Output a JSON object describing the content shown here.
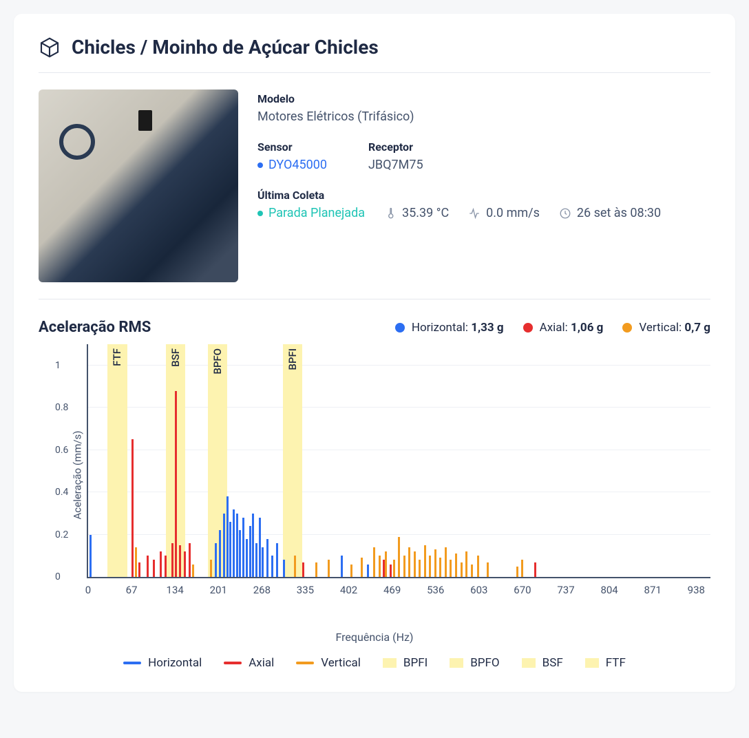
{
  "header": {
    "title": "Chicles / Moinho de Açúcar Chicles"
  },
  "info": {
    "model_label": "Modelo",
    "model_value": "Motores Elétricos (Trifásico)",
    "sensor_label": "Sensor",
    "sensor_value": "DYO45000",
    "sensor_dot_color": "#2c6ef2",
    "receptor_label": "Receptor",
    "receptor_value": "JBQ7M75",
    "last_label": "Última Coleta",
    "status_text": "Parada Planejada",
    "status_dot_color": "#1fc4b5",
    "temp": "35.39 °C",
    "velocity": "0.0 mm/s",
    "timestamp": "26 set às 08:30"
  },
  "chart": {
    "title": "Aceleração RMS",
    "y_axis_label": "Aceleração (mm/s)",
    "x_axis_label": "Frequência (Hz)",
    "colors": {
      "horizontal": "#2c6ef2",
      "axial": "#e62e2e",
      "vertical": "#f29b1f",
      "band": "#fdf3b0",
      "grid": "#eef0f4"
    },
    "legend_top": [
      {
        "label": "Horizontal:",
        "value": "1,33 g",
        "color": "#2c6ef2"
      },
      {
        "label": "Axial:",
        "value": "1,06 g",
        "color": "#e62e2e"
      },
      {
        "label": "Vertical:",
        "value": "0,7 g",
        "color": "#f29b1f"
      }
    ],
    "y_ticks": [
      0,
      0.2,
      0.4,
      0.6,
      0.8,
      1
    ],
    "y_max": 1.1,
    "x_ticks": [
      0,
      67,
      134,
      201,
      268,
      335,
      402,
      469,
      536,
      603,
      670,
      737,
      804,
      871,
      938
    ],
    "x_max": 960,
    "bands": [
      {
        "label": "FTF",
        "x": 30,
        "width": 30
      },
      {
        "label": "BSF",
        "x": 120,
        "width": 30
      },
      {
        "label": "BPFO",
        "x": 185,
        "width": 30
      },
      {
        "label": "BPFI",
        "x": 300,
        "width": 30
      }
    ],
    "series": {
      "horizontal": [
        {
          "x": 2,
          "y": 0.2
        },
        {
          "x": 195,
          "y": 0.16
        },
        {
          "x": 202,
          "y": 0.22
        },
        {
          "x": 208,
          "y": 0.3
        },
        {
          "x": 213,
          "y": 0.38
        },
        {
          "x": 218,
          "y": 0.26
        },
        {
          "x": 223,
          "y": 0.32
        },
        {
          "x": 228,
          "y": 0.3
        },
        {
          "x": 233,
          "y": 0.22
        },
        {
          "x": 238,
          "y": 0.28
        },
        {
          "x": 243,
          "y": 0.18
        },
        {
          "x": 248,
          "y": 0.24
        },
        {
          "x": 253,
          "y": 0.3
        },
        {
          "x": 258,
          "y": 0.16
        },
        {
          "x": 263,
          "y": 0.28
        },
        {
          "x": 268,
          "y": 0.14
        },
        {
          "x": 275,
          "y": 0.18
        },
        {
          "x": 282,
          "y": 0.1
        },
        {
          "x": 290,
          "y": 0.16
        },
        {
          "x": 300,
          "y": 0.08
        },
        {
          "x": 390,
          "y": 0.1
        },
        {
          "x": 430,
          "y": 0.06
        }
      ],
      "axial": [
        {
          "x": 67,
          "y": 0.65
        },
        {
          "x": 78,
          "y": 0.07
        },
        {
          "x": 90,
          "y": 0.1
        },
        {
          "x": 100,
          "y": 0.08
        },
        {
          "x": 110,
          "y": 0.12
        },
        {
          "x": 118,
          "y": 0.1
        },
        {
          "x": 128,
          "y": 0.16
        },
        {
          "x": 134,
          "y": 0.88
        },
        {
          "x": 140,
          "y": 0.15
        },
        {
          "x": 148,
          "y": 0.12
        },
        {
          "x": 155,
          "y": 0.16
        },
        {
          "x": 330,
          "y": 0.07
        },
        {
          "x": 455,
          "y": 0.08
        },
        {
          "x": 465,
          "y": 0.06
        },
        {
          "x": 688,
          "y": 0.07
        }
      ],
      "vertical": [
        {
          "x": 72,
          "y": 0.14
        },
        {
          "x": 134,
          "y": 0.52
        },
        {
          "x": 160,
          "y": 0.06
        },
        {
          "x": 188,
          "y": 0.08
        },
        {
          "x": 318,
          "y": 0.1
        },
        {
          "x": 350,
          "y": 0.07
        },
        {
          "x": 370,
          "y": 0.08
        },
        {
          "x": 405,
          "y": 0.06
        },
        {
          "x": 420,
          "y": 0.09
        },
        {
          "x": 440,
          "y": 0.14
        },
        {
          "x": 448,
          "y": 0.1
        },
        {
          "x": 458,
          "y": 0.12
        },
        {
          "x": 470,
          "y": 0.08
        },
        {
          "x": 478,
          "y": 0.19
        },
        {
          "x": 486,
          "y": 0.1
        },
        {
          "x": 494,
          "y": 0.14
        },
        {
          "x": 502,
          "y": 0.12
        },
        {
          "x": 510,
          "y": 0.08
        },
        {
          "x": 518,
          "y": 0.15
        },
        {
          "x": 526,
          "y": 0.1
        },
        {
          "x": 534,
          "y": 0.13
        },
        {
          "x": 542,
          "y": 0.09
        },
        {
          "x": 550,
          "y": 0.14
        },
        {
          "x": 558,
          "y": 0.08
        },
        {
          "x": 566,
          "y": 0.11
        },
        {
          "x": 574,
          "y": 0.07
        },
        {
          "x": 582,
          "y": 0.12
        },
        {
          "x": 590,
          "y": 0.06
        },
        {
          "x": 600,
          "y": 0.1
        },
        {
          "x": 615,
          "y": 0.07
        },
        {
          "x": 660,
          "y": 0.05
        },
        {
          "x": 668,
          "y": 0.08
        }
      ]
    },
    "legend_bottom": [
      {
        "type": "line",
        "label": "Horizontal",
        "color": "#2c6ef2"
      },
      {
        "type": "line",
        "label": "Axial",
        "color": "#e62e2e"
      },
      {
        "type": "line",
        "label": "Vertical",
        "color": "#f29b1f"
      },
      {
        "type": "box",
        "label": "BPFI"
      },
      {
        "type": "box",
        "label": "BPFO"
      },
      {
        "type": "box",
        "label": "BSF"
      },
      {
        "type": "box",
        "label": "FTF"
      }
    ]
  }
}
